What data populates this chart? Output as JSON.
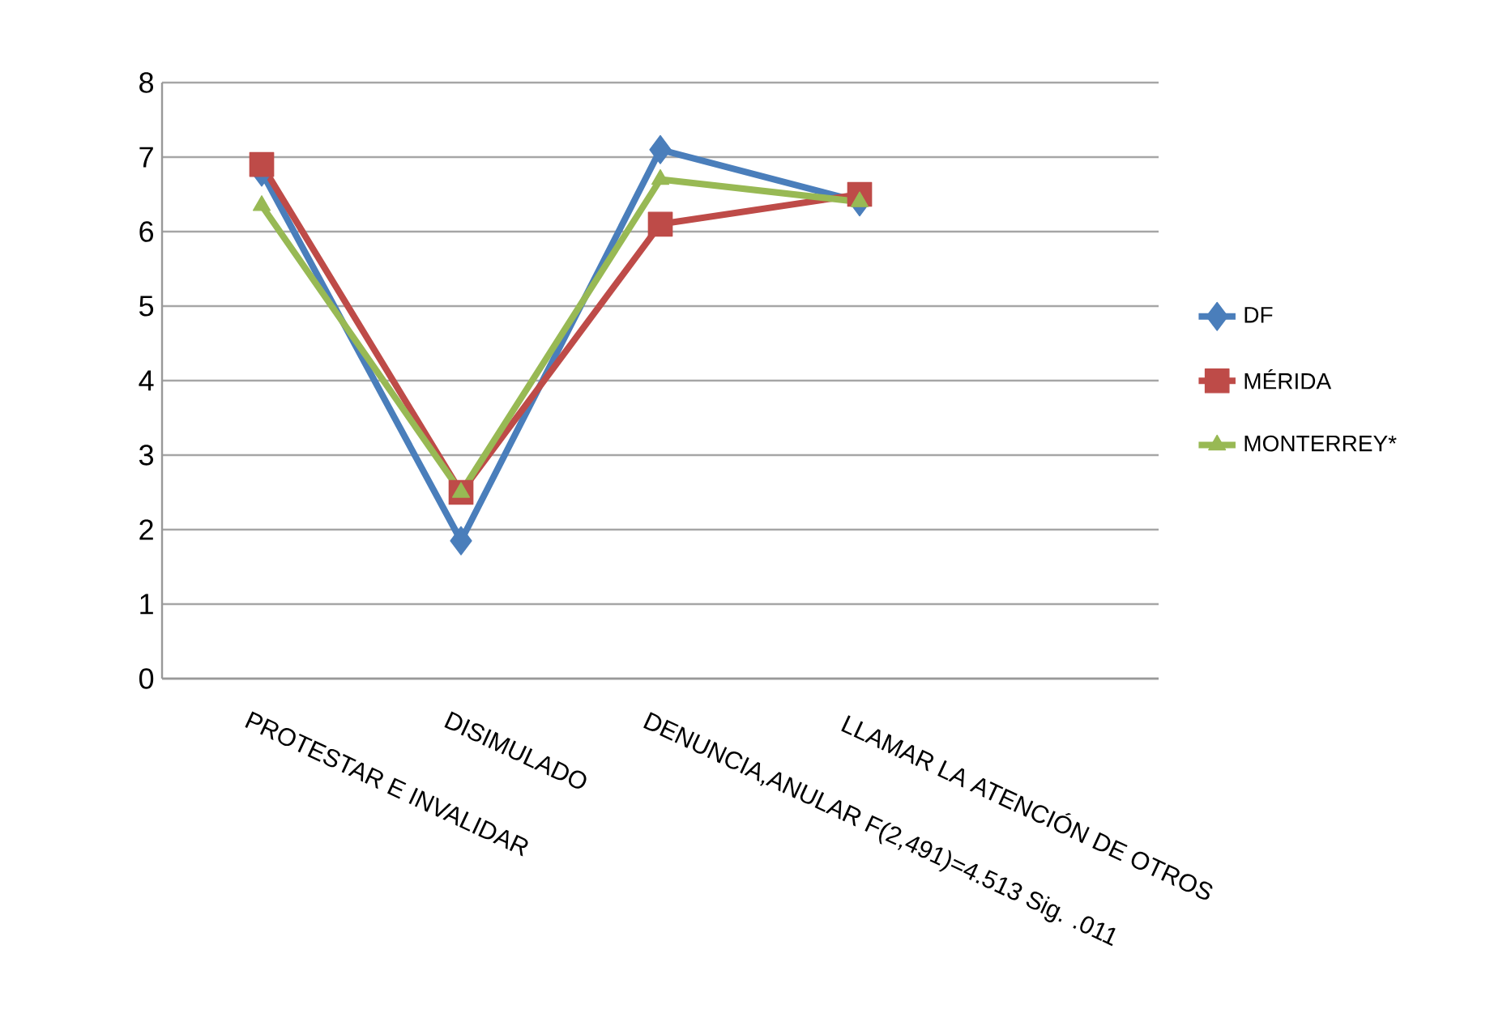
{
  "chart_data": {
    "type": "line",
    "categories": [
      "PROTESTAR E INVALIDAR",
      "DISIMULADO",
      "DENUNCIA,ANULAR F(2,491)=4.513 Sig. .011",
      "LLAMAR LA ATENCIÓN DE OTROS",
      null
    ],
    "series": [
      {
        "name": "DF",
        "color": "#4a7ebb",
        "marker": "diamond",
        "values": [
          6.8,
          1.85,
          7.1,
          6.4,
          null
        ]
      },
      {
        "name": "MÉRIDA",
        "color": "#be4b48",
        "marker": "square",
        "values": [
          6.9,
          2.5,
          6.1,
          6.5,
          null
        ]
      },
      {
        "name": "MONTERREY*",
        "color": "#98b954",
        "marker": "triangle",
        "values": [
          6.35,
          2.5,
          6.7,
          6.4,
          null
        ]
      }
    ],
    "ylim": [
      0,
      8
    ],
    "yticks": [
      0,
      1,
      2,
      3,
      4,
      5,
      6,
      7,
      8
    ],
    "grid": "y",
    "legend": "right",
    "line_style": "solid"
  }
}
